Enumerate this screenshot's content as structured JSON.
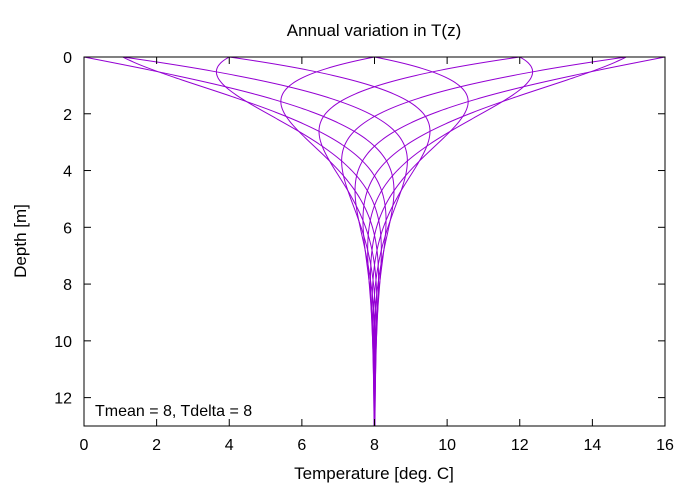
{
  "chart_data": {
    "type": "line",
    "title": "Annual variation in T(z)",
    "xlabel": "Temperature [deg. C]",
    "ylabel": "Depth [m]",
    "xlim": [
      0,
      16
    ],
    "ylim": [
      13,
      0
    ],
    "xticks": [
      0,
      2,
      4,
      6,
      8,
      10,
      12,
      14,
      16
    ],
    "yticks": [
      0,
      2,
      4,
      6,
      8,
      10,
      12
    ],
    "annotation": "Tmean = 8, Tdelta = 8",
    "grid": false,
    "line_color": "#9400d3",
    "model": {
      "formula": "T(z,t) = Tmean + Tdelta * exp(-z/d) * sin(2*pi*t - z/d)",
      "tmean": 8,
      "tdelta": 8,
      "damping_depth_m": 2.0,
      "phases_deg": [
        0,
        30,
        60,
        90,
        120,
        150,
        180,
        210,
        240,
        270,
        300,
        330
      ],
      "z_range": [
        0,
        13
      ]
    }
  }
}
